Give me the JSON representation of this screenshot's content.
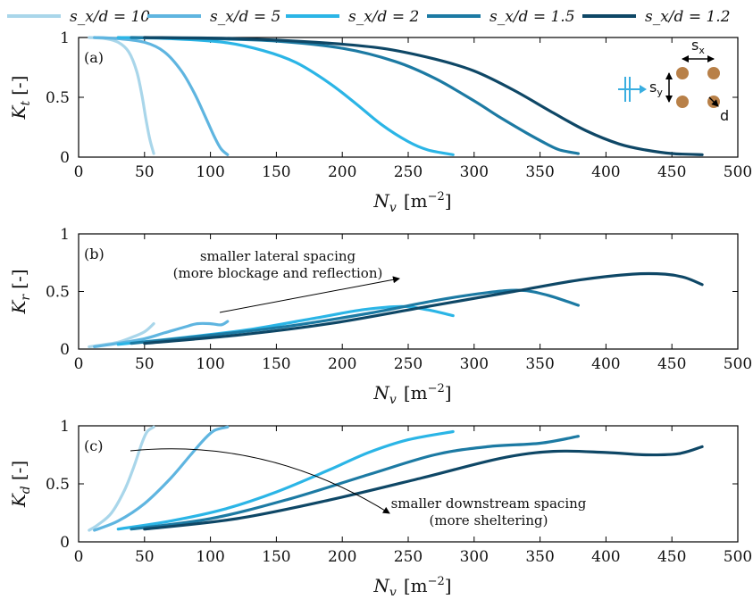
{
  "colors": {
    "s10": "#a9d6ea",
    "s5": "#5fb5e0",
    "s2": "#2bb5e6",
    "s15": "#1c7aa3",
    "s12": "#0e4766",
    "axis": "#000000",
    "cylinder": "#b88048",
    "wave": "#3aaee0"
  },
  "legend": [
    {
      "label": "s_x/d = 10",
      "color": "#a9d6ea"
    },
    {
      "label": "s_x/d = 5",
      "color": "#5fb5e0"
    },
    {
      "label": "s_x/d = 2",
      "color": "#2bb5e6"
    },
    {
      "label": "s_x/d = 1.5",
      "color": "#1c7aa3"
    },
    {
      "label": "s_x/d = 1.2",
      "color": "#0e4766"
    }
  ],
  "inset": {
    "sx_label": "s",
    "sx_sub": "x",
    "sy_label": "s",
    "sy_sub": "y",
    "d_label": "d"
  },
  "chart_data": [
    {
      "type": "line",
      "panel_label": "(a)",
      "ylabel": "K",
      "ylabel_sub": "t",
      "ylabel_unit": "[-]",
      "xlabel": "N",
      "xlabel_sub": "v",
      "xlabel_unit": "[m",
      "xlabel_exp": "−2",
      "xlabel_close": "]",
      "xlim": [
        0,
        500
      ],
      "ylim": [
        0,
        1
      ],
      "xticks": [
        "0",
        "50",
        "100",
        "150",
        "200",
        "250",
        "300",
        "350",
        "400",
        "450",
        "500"
      ],
      "yticks": [
        "0",
        "0.5",
        "1"
      ],
      "series": [
        {
          "name": "s_x/d = 10",
          "color": "#a9d6ea",
          "points": [
            [
              8,
              1
            ],
            [
              20,
              0.99
            ],
            [
              30,
              0.96
            ],
            [
              38,
              0.88
            ],
            [
              44,
              0.72
            ],
            [
              48,
              0.52
            ],
            [
              51,
              0.32
            ],
            [
              54,
              0.15
            ],
            [
              57,
              0.03
            ]
          ]
        },
        {
          "name": "s_x/d = 5",
          "color": "#5fb5e0",
          "points": [
            [
              12,
              1
            ],
            [
              30,
              0.99
            ],
            [
              50,
              0.96
            ],
            [
              65,
              0.88
            ],
            [
              78,
              0.72
            ],
            [
              88,
              0.53
            ],
            [
              96,
              0.34
            ],
            [
              103,
              0.17
            ],
            [
              108,
              0.07
            ],
            [
              113,
              0.02
            ]
          ]
        },
        {
          "name": "s_x/d = 2",
          "color": "#2bb5e6",
          "points": [
            [
              30,
              1
            ],
            [
              70,
              0.99
            ],
            [
              110,
              0.96
            ],
            [
              140,
              0.89
            ],
            [
              165,
              0.79
            ],
            [
              190,
              0.62
            ],
            [
              210,
              0.45
            ],
            [
              230,
              0.27
            ],
            [
              250,
              0.13
            ],
            [
              265,
              0.06
            ],
            [
              284,
              0.02
            ]
          ]
        },
        {
          "name": "s_x/d = 1.5",
          "color": "#1c7aa3",
          "points": [
            [
              40,
              1
            ],
            [
              100,
              0.99
            ],
            [
              150,
              0.97
            ],
            [
              200,
              0.91
            ],
            [
              240,
              0.8
            ],
            [
              270,
              0.66
            ],
            [
              300,
              0.47
            ],
            [
              320,
              0.33
            ],
            [
              340,
              0.2
            ],
            [
              355,
              0.11
            ],
            [
              365,
              0.06
            ],
            [
              379,
              0.03
            ]
          ]
        },
        {
          "name": "s_x/d = 1.2",
          "color": "#0e4766",
          "points": [
            [
              50,
              1
            ],
            [
              120,
              0.99
            ],
            [
              180,
              0.96
            ],
            [
              230,
              0.91
            ],
            [
              270,
              0.82
            ],
            [
              300,
              0.72
            ],
            [
              330,
              0.56
            ],
            [
              360,
              0.37
            ],
            [
              385,
              0.22
            ],
            [
              410,
              0.11
            ],
            [
              430,
              0.06
            ],
            [
              450,
              0.03
            ],
            [
              473,
              0.02
            ]
          ]
        }
      ]
    },
    {
      "type": "line",
      "panel_label": "(b)",
      "ylabel": "K",
      "ylabel_sub": "r",
      "ylabel_unit": "[-]",
      "xlabel": "N",
      "xlabel_sub": "v",
      "xlabel_unit": "[m",
      "xlabel_exp": "−2",
      "xlabel_close": "]",
      "xlim": [
        0,
        500
      ],
      "ylim": [
        0,
        1
      ],
      "xticks": [
        "0",
        "50",
        "100",
        "150",
        "200",
        "250",
        "300",
        "350",
        "400",
        "450",
        "500"
      ],
      "yticks": [
        "0",
        "0.5",
        "1"
      ],
      "annotation": [
        "smaller lateral spacing",
        "(more blockage and reflection)"
      ],
      "series": [
        {
          "name": "s_x/d = 10",
          "color": "#a9d6ea",
          "points": [
            [
              8,
              0.02
            ],
            [
              20,
              0.04
            ],
            [
              30,
              0.06
            ],
            [
              40,
              0.1
            ],
            [
              50,
              0.15
            ],
            [
              57,
              0.22
            ]
          ]
        },
        {
          "name": "s_x/d = 5",
          "color": "#5fb5e0",
          "points": [
            [
              12,
              0.02
            ],
            [
              30,
              0.05
            ],
            [
              50,
              0.09
            ],
            [
              65,
              0.14
            ],
            [
              80,
              0.19
            ],
            [
              90,
              0.22
            ],
            [
              100,
              0.22
            ],
            [
              108,
              0.21
            ],
            [
              113,
              0.24
            ]
          ]
        },
        {
          "name": "s_x/d = 2",
          "color": "#2bb5e6",
          "points": [
            [
              30,
              0.04
            ],
            [
              80,
              0.1
            ],
            [
              130,
              0.17
            ],
            [
              180,
              0.27
            ],
            [
              215,
              0.34
            ],
            [
              245,
              0.37
            ],
            [
              265,
              0.34
            ],
            [
              284,
              0.29
            ]
          ]
        },
        {
          "name": "s_x/d = 1.5",
          "color": "#1c7aa3",
          "points": [
            [
              40,
              0.05
            ],
            [
              100,
              0.12
            ],
            [
              160,
              0.2
            ],
            [
              220,
              0.31
            ],
            [
              270,
              0.42
            ],
            [
              310,
              0.49
            ],
            [
              335,
              0.51
            ],
            [
              355,
              0.47
            ],
            [
              379,
              0.38
            ]
          ]
        },
        {
          "name": "s_x/d = 1.2",
          "color": "#0e4766",
          "points": [
            [
              50,
              0.05
            ],
            [
              120,
              0.12
            ],
            [
              190,
              0.22
            ],
            [
              260,
              0.36
            ],
            [
              330,
              0.5
            ],
            [
              380,
              0.6
            ],
            [
              420,
              0.65
            ],
            [
              445,
              0.65
            ],
            [
              460,
              0.62
            ],
            [
              473,
              0.56
            ]
          ]
        }
      ]
    },
    {
      "type": "line",
      "panel_label": "(c)",
      "ylabel": "K",
      "ylabel_sub": "d",
      "ylabel_unit": "[-]",
      "xlabel": "N",
      "xlabel_sub": "v",
      "xlabel_unit": "[m",
      "xlabel_exp": "−2",
      "xlabel_close": "]",
      "xlim": [
        0,
        500
      ],
      "ylim": [
        0,
        1
      ],
      "xticks": [
        "0",
        "50",
        "100",
        "150",
        "200",
        "250",
        "300",
        "350",
        "400",
        "450",
        "500"
      ],
      "yticks": [
        "0",
        "0.5",
        "1"
      ],
      "annotation": [
        "smaller downstream spacing",
        "(more sheltering)"
      ],
      "series": [
        {
          "name": "s_x/d = 10",
          "color": "#a9d6ea",
          "points": [
            [
              8,
              0.1
            ],
            [
              15,
              0.15
            ],
            [
              25,
              0.25
            ],
            [
              35,
              0.45
            ],
            [
              42,
              0.65
            ],
            [
              48,
              0.85
            ],
            [
              52,
              0.95
            ],
            [
              57,
              0.99
            ]
          ]
        },
        {
          "name": "s_x/d = 5",
          "color": "#5fb5e0",
          "points": [
            [
              12,
              0.1
            ],
            [
              30,
              0.18
            ],
            [
              50,
              0.33
            ],
            [
              70,
              0.55
            ],
            [
              85,
              0.75
            ],
            [
              95,
              0.88
            ],
            [
              103,
              0.96
            ],
            [
              113,
              0.99
            ]
          ]
        },
        {
          "name": "s_x/d = 2",
          "color": "#2bb5e6",
          "points": [
            [
              30,
              0.11
            ],
            [
              70,
              0.18
            ],
            [
              110,
              0.28
            ],
            [
              150,
              0.43
            ],
            [
              190,
              0.62
            ],
            [
              220,
              0.77
            ],
            [
              250,
              0.88
            ],
            [
              284,
              0.95
            ]
          ]
        },
        {
          "name": "s_x/d = 1.5",
          "color": "#1c7aa3",
          "points": [
            [
              40,
              0.11
            ],
            [
              100,
              0.2
            ],
            [
              160,
              0.37
            ],
            [
              220,
              0.58
            ],
            [
              270,
              0.75
            ],
            [
              310,
              0.82
            ],
            [
              350,
              0.85
            ],
            [
              379,
              0.91
            ]
          ]
        },
        {
          "name": "s_x/d = 1.2",
          "color": "#0e4766",
          "points": [
            [
              50,
              0.11
            ],
            [
              120,
              0.2
            ],
            [
              190,
              0.36
            ],
            [
              260,
              0.55
            ],
            [
              320,
              0.72
            ],
            [
              360,
              0.78
            ],
            [
              400,
              0.77
            ],
            [
              430,
              0.75
            ],
            [
              455,
              0.76
            ],
            [
              473,
              0.82
            ]
          ]
        }
      ]
    }
  ]
}
